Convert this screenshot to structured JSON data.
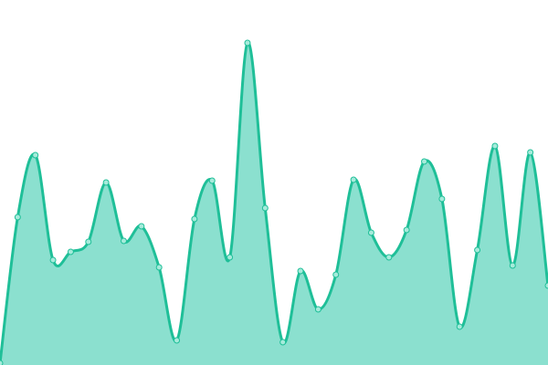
{
  "chart_data": {
    "type": "area",
    "title": "",
    "xlabel": "",
    "ylabel": "",
    "x": [
      0,
      1,
      2,
      3,
      4,
      5,
      6,
      7,
      8,
      9,
      10,
      11,
      12,
      13,
      14,
      15,
      16,
      17,
      18,
      19,
      20,
      21,
      22,
      23,
      24,
      25,
      26,
      27,
      28,
      29,
      30,
      31
    ],
    "series": [
      {
        "values": [
          2,
          162,
          230,
          115,
          124,
          135,
          200,
          136,
          152,
          107,
          27,
          160,
          202,
          118,
          353,
          172,
          25,
          103,
          61,
          99,
          203,
          145,
          118,
          148,
          223,
          182,
          42,
          126,
          240,
          109,
          233,
          87
        ]
      }
    ],
    "ylim": [
      0,
      400
    ],
    "grid": false,
    "axes_visible": false,
    "colors": {
      "line": "#1fbf98",
      "fill": "#8be0cf",
      "marker_fill": "#a6ebdb",
      "marker_stroke": "#1fbf98"
    }
  }
}
